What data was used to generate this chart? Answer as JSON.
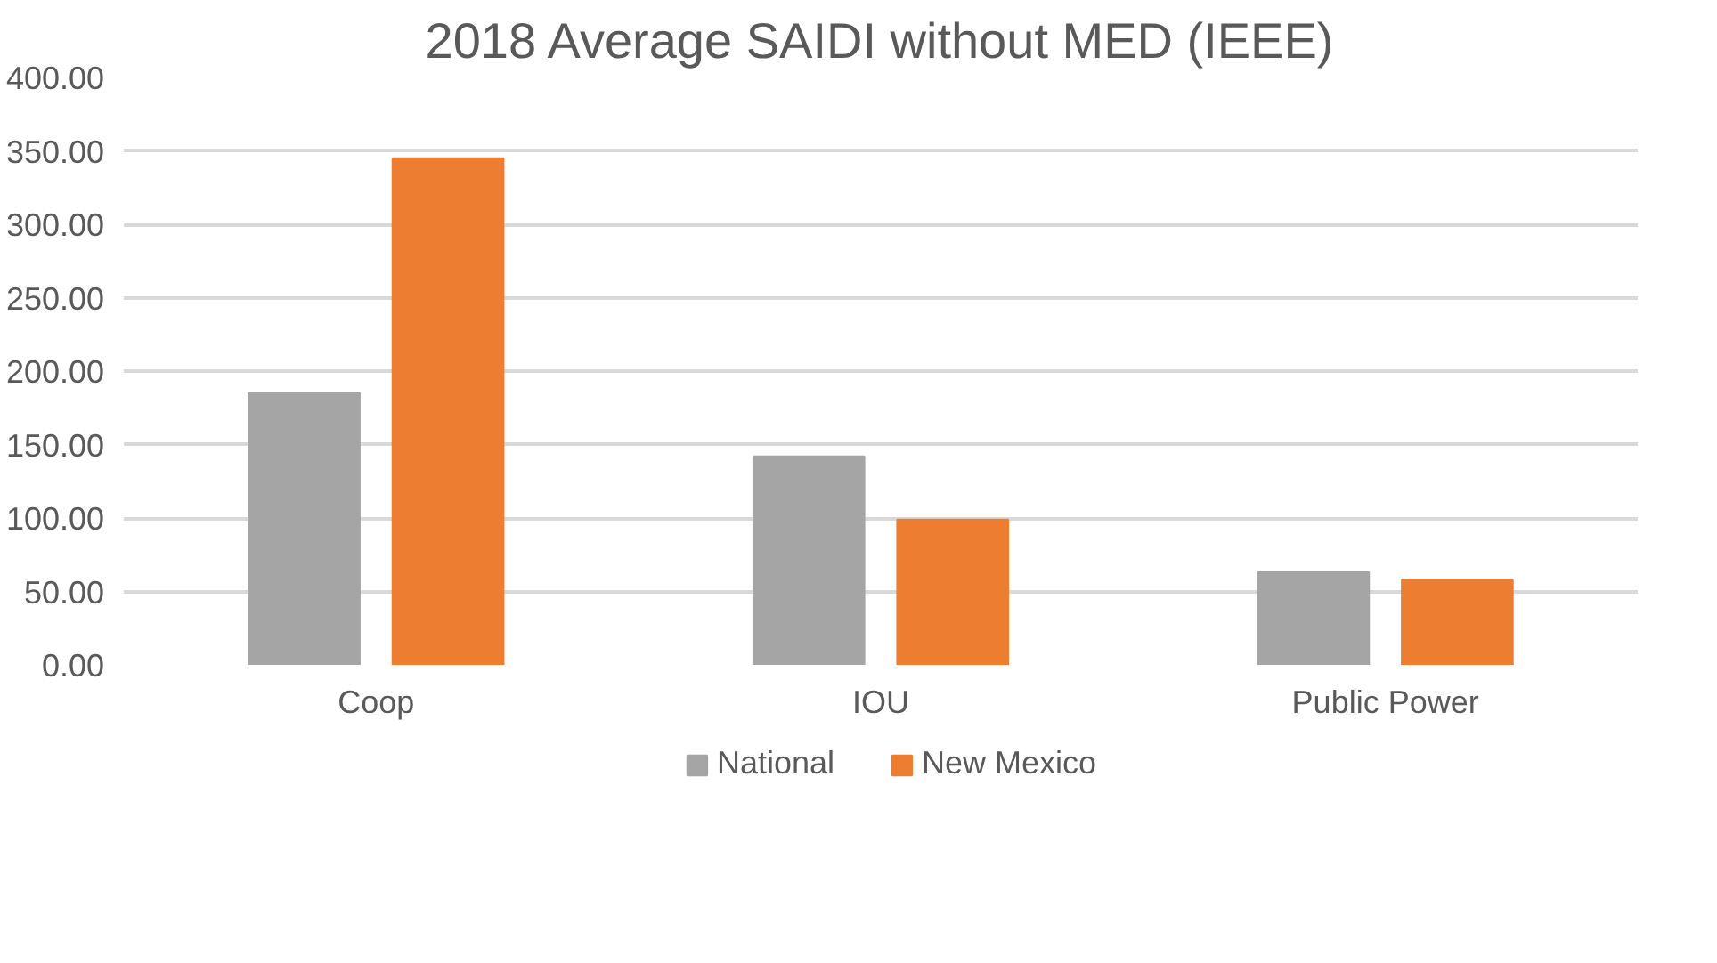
{
  "chart_data": {
    "type": "bar",
    "title": "2018 Average SAIDI without MED (IEEE)",
    "categories": [
      "Coop",
      "IOU",
      "Public Power"
    ],
    "series": [
      {
        "name": "National",
        "color": "#a5a5a5",
        "values": [
          185,
          142,
          63
        ]
      },
      {
        "name": "New Mexico",
        "color": "#ed7d31",
        "values": [
          345,
          99,
          58
        ]
      }
    ],
    "ylim": [
      0,
      400
    ],
    "yticks": [
      {
        "value": 0,
        "label": "0.00"
      },
      {
        "value": 50,
        "label": "50.00"
      },
      {
        "value": 100,
        "label": "100.00"
      },
      {
        "value": 150,
        "label": "150.00"
      },
      {
        "value": 200,
        "label": "200.00"
      },
      {
        "value": 250,
        "label": "250.00"
      },
      {
        "value": 300,
        "label": "300.00"
      },
      {
        "value": 350,
        "label": "350.00"
      },
      {
        "value": 400,
        "label": "400.00"
      }
    ],
    "grid": "y",
    "legend": "bottom"
  }
}
